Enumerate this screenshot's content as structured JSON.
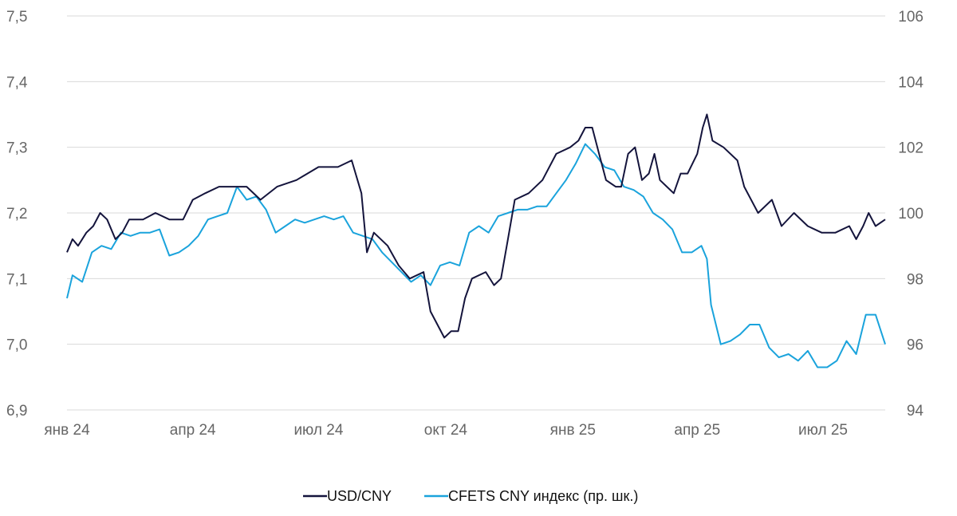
{
  "chart_data": {
    "type": "line",
    "title": "",
    "xlabel": "",
    "ylabel": "",
    "x_tick_labels": [
      "янв 24",
      "апр 24",
      "июл 24",
      "окт 24",
      "янв 25",
      "апр 25",
      "июл 25"
    ],
    "x_tick_dates": [
      "2024-01-01",
      "2024-04-01",
      "2024-07-01",
      "2024-10-01",
      "2025-01-01",
      "2025-04-01",
      "2025-07-01"
    ],
    "xlim": [
      "2024-01-01",
      "2025-08-15"
    ],
    "ylim_left": [
      6.9,
      7.5
    ],
    "y_ticks_left": [
      "6,9",
      "7,0",
      "7,1",
      "7,2",
      "7,3",
      "7,4",
      "7,5"
    ],
    "ylim_right": [
      94,
      106
    ],
    "y_ticks_right": [
      "94",
      "96",
      "98",
      "100",
      "102",
      "104",
      "106"
    ],
    "grid": true,
    "legend_position": "bottom",
    "series": [
      {
        "name": "USD/CNY",
        "axis": "left",
        "color": "#14143c",
        "points": [
          [
            "2024-01-01",
            7.14
          ],
          [
            "2024-01-05",
            7.16
          ],
          [
            "2024-01-09",
            7.15
          ],
          [
            "2024-01-15",
            7.17
          ],
          [
            "2024-01-20",
            7.18
          ],
          [
            "2024-01-25",
            7.2
          ],
          [
            "2024-01-30",
            7.19
          ],
          [
            "2024-02-05",
            7.16
          ],
          [
            "2024-02-10",
            7.17
          ],
          [
            "2024-02-15",
            7.19
          ],
          [
            "2024-02-25",
            7.19
          ],
          [
            "2024-03-05",
            7.2
          ],
          [
            "2024-03-15",
            7.19
          ],
          [
            "2024-03-25",
            7.19
          ],
          [
            "2024-04-01",
            7.22
          ],
          [
            "2024-04-10",
            7.23
          ],
          [
            "2024-04-20",
            7.24
          ],
          [
            "2024-05-01",
            7.24
          ],
          [
            "2024-05-10",
            7.24
          ],
          [
            "2024-05-20",
            7.22
          ],
          [
            "2024-06-01",
            7.24
          ],
          [
            "2024-06-15",
            7.25
          ],
          [
            "2024-07-01",
            7.27
          ],
          [
            "2024-07-15",
            7.27
          ],
          [
            "2024-07-25",
            7.28
          ],
          [
            "2024-08-01",
            7.23
          ],
          [
            "2024-08-05",
            7.14
          ],
          [
            "2024-08-10",
            7.17
          ],
          [
            "2024-08-20",
            7.15
          ],
          [
            "2024-08-28",
            7.12
          ],
          [
            "2024-09-05",
            7.1
          ],
          [
            "2024-09-15",
            7.11
          ],
          [
            "2024-09-20",
            7.05
          ],
          [
            "2024-09-25",
            7.03
          ],
          [
            "2024-09-30",
            7.01
          ],
          [
            "2024-10-05",
            7.02
          ],
          [
            "2024-10-10",
            7.02
          ],
          [
            "2024-10-15",
            7.07
          ],
          [
            "2024-10-20",
            7.1
          ],
          [
            "2024-10-30",
            7.11
          ],
          [
            "2024-11-05",
            7.09
          ],
          [
            "2024-11-10",
            7.1
          ],
          [
            "2024-11-15",
            7.16
          ],
          [
            "2024-11-20",
            7.22
          ],
          [
            "2024-11-30",
            7.23
          ],
          [
            "2024-12-10",
            7.25
          ],
          [
            "2024-12-20",
            7.29
          ],
          [
            "2024-12-30",
            7.3
          ],
          [
            "2025-01-05",
            7.31
          ],
          [
            "2025-01-10",
            7.33
          ],
          [
            "2025-01-15",
            7.33
          ],
          [
            "2025-01-20",
            7.29
          ],
          [
            "2025-01-25",
            7.25
          ],
          [
            "2025-02-01",
            7.24
          ],
          [
            "2025-02-05",
            7.24
          ],
          [
            "2025-02-10",
            7.29
          ],
          [
            "2025-02-15",
            7.3
          ],
          [
            "2025-02-20",
            7.25
          ],
          [
            "2025-02-25",
            7.26
          ],
          [
            "2025-03-01",
            7.29
          ],
          [
            "2025-03-05",
            7.25
          ],
          [
            "2025-03-10",
            7.24
          ],
          [
            "2025-03-15",
            7.23
          ],
          [
            "2025-03-20",
            7.26
          ],
          [
            "2025-03-25",
            7.26
          ],
          [
            "2025-04-01",
            7.29
          ],
          [
            "2025-04-05",
            7.33
          ],
          [
            "2025-04-08",
            7.35
          ],
          [
            "2025-04-12",
            7.31
          ],
          [
            "2025-04-20",
            7.3
          ],
          [
            "2025-04-30",
            7.28
          ],
          [
            "2025-05-05",
            7.24
          ],
          [
            "2025-05-15",
            7.2
          ],
          [
            "2025-05-25",
            7.22
          ],
          [
            "2025-06-01",
            7.18
          ],
          [
            "2025-06-10",
            7.2
          ],
          [
            "2025-06-20",
            7.18
          ],
          [
            "2025-06-30",
            7.17
          ],
          [
            "2025-07-10",
            7.17
          ],
          [
            "2025-07-20",
            7.18
          ],
          [
            "2025-07-25",
            7.16
          ],
          [
            "2025-07-30",
            7.18
          ],
          [
            "2025-08-03",
            7.2
          ],
          [
            "2025-08-08",
            7.18
          ],
          [
            "2025-08-15",
            7.19
          ]
        ]
      },
      {
        "name": "CFETS CNY индекс (пр. шк.)",
        "axis": "right",
        "color": "#1aa3dc",
        "points": [
          [
            "2024-01-01",
            97.4
          ],
          [
            "2024-01-05",
            98.1
          ],
          [
            "2024-01-12",
            97.9
          ],
          [
            "2024-01-19",
            98.8
          ],
          [
            "2024-01-26",
            99.0
          ],
          [
            "2024-02-02",
            98.9
          ],
          [
            "2024-02-09",
            99.4
          ],
          [
            "2024-02-16",
            99.3
          ],
          [
            "2024-02-23",
            99.4
          ],
          [
            "2024-03-01",
            99.4
          ],
          [
            "2024-03-08",
            99.5
          ],
          [
            "2024-03-15",
            98.7
          ],
          [
            "2024-03-22",
            98.8
          ],
          [
            "2024-03-29",
            99.0
          ],
          [
            "2024-04-05",
            99.3
          ],
          [
            "2024-04-12",
            99.8
          ],
          [
            "2024-04-19",
            99.9
          ],
          [
            "2024-04-26",
            100.0
          ],
          [
            "2024-05-03",
            100.8
          ],
          [
            "2024-05-10",
            100.4
          ],
          [
            "2024-05-17",
            100.5
          ],
          [
            "2024-05-24",
            100.1
          ],
          [
            "2024-05-31",
            99.4
          ],
          [
            "2024-06-07",
            99.6
          ],
          [
            "2024-06-14",
            99.8
          ],
          [
            "2024-06-21",
            99.7
          ],
          [
            "2024-06-28",
            99.8
          ],
          [
            "2024-07-05",
            99.9
          ],
          [
            "2024-07-12",
            99.8
          ],
          [
            "2024-07-19",
            99.9
          ],
          [
            "2024-07-26",
            99.4
          ],
          [
            "2024-08-02",
            99.3
          ],
          [
            "2024-08-09",
            99.2
          ],
          [
            "2024-08-16",
            98.8
          ],
          [
            "2024-08-23",
            98.5
          ],
          [
            "2024-08-30",
            98.2
          ],
          [
            "2024-09-06",
            97.9
          ],
          [
            "2024-09-13",
            98.1
          ],
          [
            "2024-09-20",
            97.8
          ],
          [
            "2024-09-27",
            98.4
          ],
          [
            "2024-10-04",
            98.5
          ],
          [
            "2024-10-11",
            98.4
          ],
          [
            "2024-10-18",
            99.4
          ],
          [
            "2024-10-25",
            99.6
          ],
          [
            "2024-11-01",
            99.4
          ],
          [
            "2024-11-08",
            99.9
          ],
          [
            "2024-11-15",
            100.0
          ],
          [
            "2024-11-22",
            100.1
          ],
          [
            "2024-11-29",
            100.1
          ],
          [
            "2024-12-06",
            100.2
          ],
          [
            "2024-12-13",
            100.2
          ],
          [
            "2024-12-20",
            100.6
          ],
          [
            "2024-12-27",
            101.0
          ],
          [
            "2025-01-03",
            101.5
          ],
          [
            "2025-01-10",
            102.1
          ],
          [
            "2025-01-17",
            101.8
          ],
          [
            "2025-01-24",
            101.4
          ],
          [
            "2025-01-31",
            101.3
          ],
          [
            "2025-02-07",
            100.8
          ],
          [
            "2025-02-14",
            100.7
          ],
          [
            "2025-02-21",
            100.5
          ],
          [
            "2025-02-28",
            100.0
          ],
          [
            "2025-03-07",
            99.8
          ],
          [
            "2025-03-14",
            99.5
          ],
          [
            "2025-03-21",
            98.8
          ],
          [
            "2025-03-28",
            98.8
          ],
          [
            "2025-04-04",
            99.0
          ],
          [
            "2025-04-08",
            98.6
          ],
          [
            "2025-04-11",
            97.2
          ],
          [
            "2025-04-18",
            96.0
          ],
          [
            "2025-04-25",
            96.1
          ],
          [
            "2025-05-02",
            96.3
          ],
          [
            "2025-05-09",
            96.6
          ],
          [
            "2025-05-16",
            96.6
          ],
          [
            "2025-05-23",
            95.9
          ],
          [
            "2025-05-30",
            95.6
          ],
          [
            "2025-06-06",
            95.7
          ],
          [
            "2025-06-13",
            95.5
          ],
          [
            "2025-06-20",
            95.8
          ],
          [
            "2025-06-27",
            95.3
          ],
          [
            "2025-07-04",
            95.3
          ],
          [
            "2025-07-11",
            95.5
          ],
          [
            "2025-07-18",
            96.1
          ],
          [
            "2025-07-25",
            95.7
          ],
          [
            "2025-08-01",
            96.9
          ],
          [
            "2025-08-08",
            96.9
          ],
          [
            "2025-08-15",
            96.0
          ]
        ]
      }
    ]
  }
}
